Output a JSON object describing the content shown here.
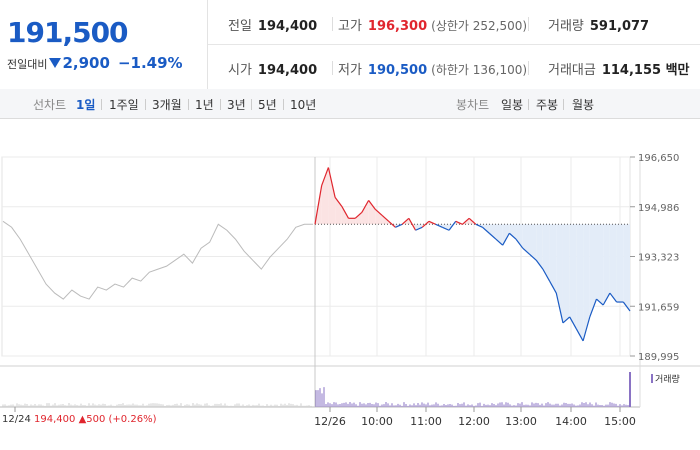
{
  "quote": {
    "price": "191,500",
    "change_label": "전일대비",
    "change_amount": "2,900",
    "change_pct": "−1.49%",
    "prev_close_label": "전일",
    "prev_close": "194,400",
    "high_label": "고가",
    "high": "196,300",
    "upper_limit": "(상한가 252,500)",
    "volume_label": "거래량",
    "volume": "591,077",
    "open_label": "시가",
    "open": "194,400",
    "low_label": "저가",
    "low": "190,500",
    "lower_limit": "(하한가 136,100)",
    "value_label": "거래대금",
    "value": "114,155 백만"
  },
  "tabs": {
    "line_chart_label": "선차트",
    "periods": [
      "1일",
      "1주일",
      "3개월",
      "1년",
      "3년",
      "5년",
      "10년"
    ],
    "active_period": "1일",
    "candle_label": "봉차트",
    "candles": [
      "일봉",
      "주봉",
      "월봉"
    ]
  },
  "prev_day": {
    "date": "12/24",
    "close": "194,400",
    "change": "▲500",
    "pct": "(+0.26%)"
  },
  "volume_legend": "거래량",
  "colors": {
    "up": "#e0262e",
    "down": "#1a5bc4",
    "prev": "#bbbbbb",
    "fill_up": "#fbe3e3",
    "fill_down": "#e3ecf8",
    "volume": "#8a73c4"
  },
  "chart_data": {
    "type": "line",
    "y_ticks": [
      "196,650",
      "194,986",
      "193,323",
      "191,659",
      "189,995"
    ],
    "ylim": [
      189995,
      196650
    ],
    "baseline": 194400,
    "x_ticks": [
      "12/24",
      "12/26",
      "10:00",
      "11:00",
      "12:00",
      "13:00",
      "14:00",
      "15:00"
    ],
    "grid": true,
    "series": [
      {
        "values": [
          194500,
          194300,
          193900,
          193400,
          192900,
          192400,
          192100,
          191900,
          192200,
          192000,
          191900,
          192300,
          192200,
          192400,
          192300,
          192600,
          192500,
          192800,
          192900,
          193000,
          193200,
          193400,
          193100,
          193600,
          193800,
          194400,
          194200,
          193900,
          193500,
          193200,
          192900,
          193300,
          193600,
          193900,
          194300,
          194400,
          194400
        ]
      },
      {
        "values": [
          194400,
          195700,
          196300,
          195300,
          195000,
          194600,
          194600,
          194800,
          195200,
          194900,
          194700,
          194500,
          194300,
          194400,
          194600,
          194200,
          194300,
          194500,
          194400,
          194300,
          194200,
          194500,
          194400,
          194600,
          194400,
          194300,
          194100,
          193900,
          193700,
          194100,
          193900,
          193600,
          193400,
          193200,
          192900,
          192500,
          192100,
          191100,
          191300,
          190900,
          190500,
          191300,
          191900,
          191700,
          192100,
          191800,
          191800,
          191500
        ]
      }
    ]
  }
}
